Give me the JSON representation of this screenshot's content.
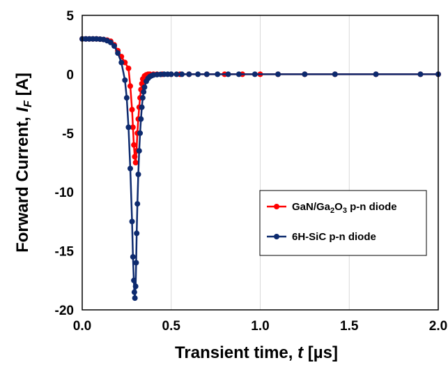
{
  "chart_data": {
    "type": "line",
    "xlabel_text": "Transient time, ",
    "xlabel_var": "t",
    "xlabel_unit": " [µs]",
    "ylabel_text": "Forward Current, ",
    "ylabel_var": "I",
    "ylabel_sub": "F",
    "ylabel_unit": " [A]",
    "xlim": [
      0,
      2.0
    ],
    "ylim": [
      -20,
      5
    ],
    "x_ticks": [
      "0.0",
      "0.5",
      "1.0",
      "1.5",
      "2.0"
    ],
    "y_ticks": [
      "5",
      "0",
      "-5",
      "-10",
      "-15",
      "-20"
    ],
    "grid": "vertical",
    "legend_position": "right",
    "series": [
      {
        "name_main": "GaN/Ga",
        "name_sub1": "2",
        "name_mid": "O",
        "name_sub2": "3",
        "name_tail": "  p-n diode",
        "color": "#ff0000",
        "x": [
          0.0,
          0.02,
          0.04,
          0.06,
          0.08,
          0.1,
          0.12,
          0.14,
          0.16,
          0.18,
          0.2,
          0.22,
          0.24,
          0.26,
          0.27,
          0.28,
          0.285,
          0.29,
          0.295,
          0.3,
          0.305,
          0.31,
          0.315,
          0.32,
          0.325,
          0.33,
          0.335,
          0.34,
          0.35,
          0.36,
          0.37,
          0.38,
          0.4,
          0.42,
          0.45,
          0.5,
          0.55,
          0.6,
          0.7,
          0.8,
          0.9,
          1.0,
          1.1,
          1.25,
          1.42,
          1.65,
          1.9,
          2.0
        ],
        "y": [
          3.0,
          3.0,
          3.0,
          3.0,
          3.0,
          2.98,
          2.95,
          2.9,
          2.8,
          2.5,
          2.0,
          1.5,
          1.0,
          0.5,
          -1.0,
          -3.0,
          -4.5,
          -6.0,
          -7.0,
          -7.5,
          -6.5,
          -5.0,
          -3.8,
          -2.8,
          -2.0,
          -1.3,
          -0.8,
          -0.4,
          -0.15,
          -0.05,
          0.0,
          0.0,
          0.0,
          0.0,
          0.0,
          0.0,
          0.0,
          0.0,
          0.0,
          0.0,
          0.0,
          0.0,
          0.0,
          0.0,
          0.0,
          0.0,
          0.0,
          0.0
        ]
      },
      {
        "name": "6H-SiC p-n diode",
        "color": "#0d2a6e",
        "x": [
          0.0,
          0.02,
          0.04,
          0.06,
          0.08,
          0.1,
          0.12,
          0.14,
          0.16,
          0.18,
          0.2,
          0.22,
          0.24,
          0.25,
          0.26,
          0.27,
          0.28,
          0.285,
          0.29,
          0.293,
          0.296,
          0.3,
          0.303,
          0.306,
          0.31,
          0.315,
          0.32,
          0.325,
          0.33,
          0.335,
          0.34,
          0.345,
          0.35,
          0.36,
          0.37,
          0.38,
          0.39,
          0.4,
          0.42,
          0.44,
          0.46,
          0.48,
          0.5,
          0.53,
          0.56,
          0.6,
          0.65,
          0.7,
          0.76,
          0.82,
          0.88,
          0.97,
          1.1,
          1.25,
          1.42,
          1.65,
          1.9,
          2.0
        ],
        "y": [
          3.0,
          3.0,
          3.0,
          3.0,
          3.0,
          2.98,
          2.95,
          2.85,
          2.7,
          2.4,
          1.8,
          1.0,
          -0.5,
          -2.0,
          -4.5,
          -8.0,
          -12.5,
          -15.5,
          -17.5,
          -18.5,
          -19.0,
          -18.0,
          -16.0,
          -13.5,
          -11.0,
          -8.5,
          -6.5,
          -5.0,
          -3.8,
          -2.8,
          -2.0,
          -1.5,
          -1.1,
          -0.6,
          -0.35,
          -0.2,
          -0.12,
          -0.06,
          -0.03,
          -0.01,
          0.0,
          0.0,
          0.0,
          0.0,
          0.0,
          0.0,
          0.0,
          0.0,
          0.0,
          0.0,
          0.0,
          0.0,
          0.0,
          0.0,
          0.0,
          0.0,
          0.0,
          0.0
        ]
      }
    ]
  }
}
